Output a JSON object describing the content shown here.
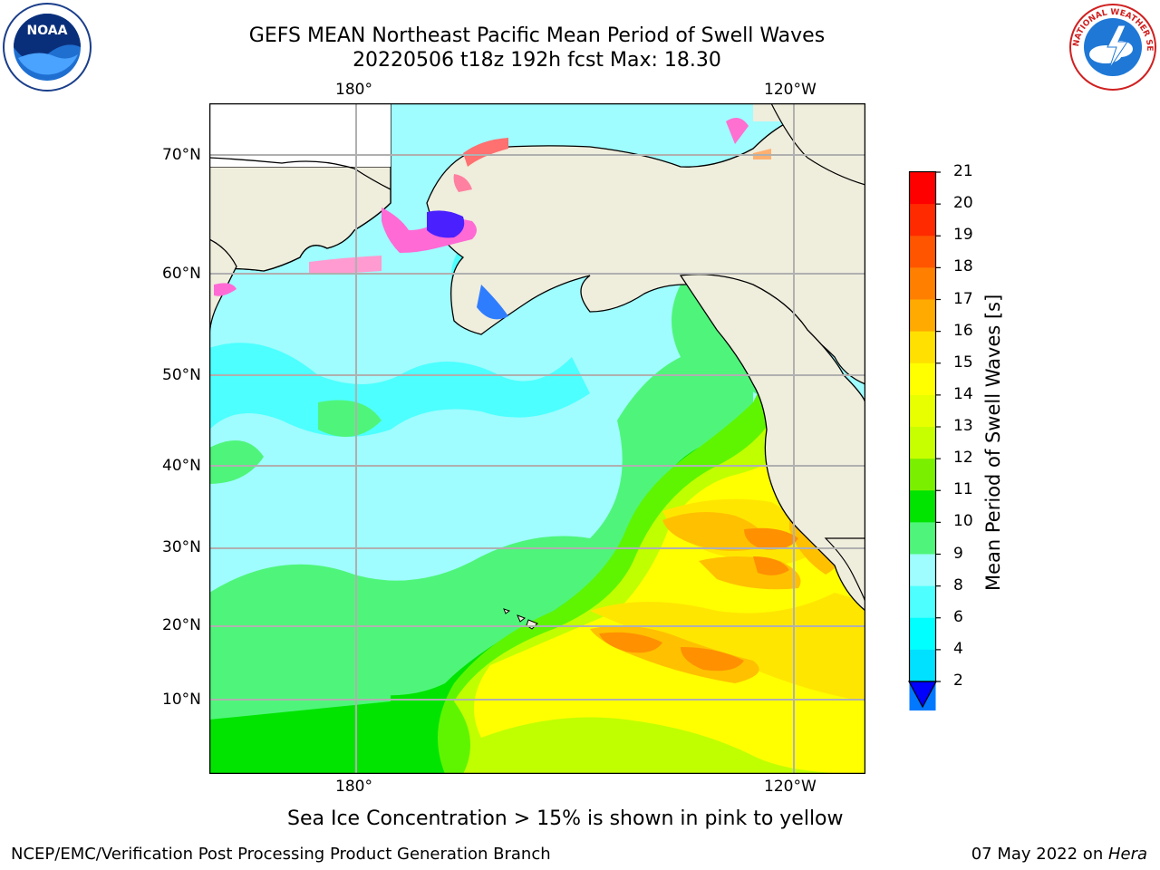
{
  "title": {
    "line1": "GEFS MEAN Northeast Pacific Mean Period of Swell Waves",
    "line2": "20220506 t18z 192h fcst   Max: 18.30"
  },
  "logos": {
    "left": {
      "text": "NOAA",
      "ring_top": "NATIONAL OCEANIC AND ATMOSPHERIC ADMINISTRATION",
      "ring_bottom": "U.S. DEPARTMENT OF COMMERCE",
      "icon": "noaa-logo"
    },
    "right": {
      "ring_text": "NATIONAL WEATHER SERVICE",
      "icon": "nws-logo"
    }
  },
  "map": {
    "lon_top": [
      "180°",
      "120°W"
    ],
    "lon_bottom": [
      "180°",
      "120°W"
    ],
    "lat_labels": [
      "70°N",
      "60°N",
      "50°N",
      "40°N",
      "30°N",
      "20°N",
      "10°N"
    ],
    "land_color": "#efeddc",
    "ocean_colors": {
      "p8_9": "#9ffcff",
      "p9_10": "#4ff57a",
      "p10_11": "#00e400",
      "p11_12": "#5ff500",
      "p12_13": "#c0ff00",
      "p13_14": "#ffff00",
      "p14_15": "#ffe600",
      "p15_16": "#ffc000",
      "p16_17": "#ff9000"
    }
  },
  "colorbar": {
    "label": "Mean Period of Swell Waves [s]",
    "ticks": [
      "21",
      "20",
      "19",
      "18",
      "17",
      "16",
      "15",
      "14",
      "13",
      "12",
      "11",
      "10",
      "9",
      "8",
      "6",
      "4",
      "2"
    ],
    "colors_top_to_bottom": [
      "#ff0000",
      "#ff2a00",
      "#ff5500",
      "#ff8000",
      "#ffaa00",
      "#ffe000",
      "#ffff00",
      "#e8ff00",
      "#c8ff00",
      "#7af000",
      "#00e400",
      "#4ff57a",
      "#9ffcff",
      "#4dffff",
      "#00ffff",
      "#00e0ff",
      "#0078ff"
    ],
    "extend_color": "#0000ff"
  },
  "caption": "Sea Ice Concentration > 15% is shown in pink to yellow",
  "footer": {
    "left": "NCEP/EMC/Verification Post Processing Product Generation Branch",
    "right_date": "07 May 2022 on ",
    "right_machine": "Hera"
  }
}
